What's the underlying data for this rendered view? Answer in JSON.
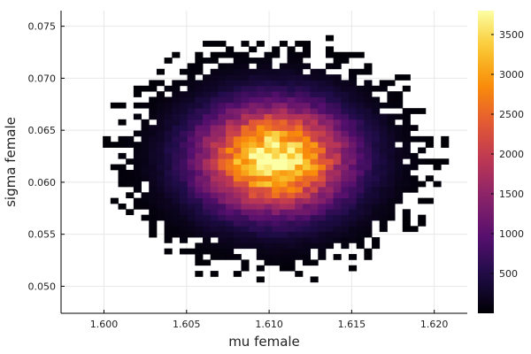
{
  "chart_data": {
    "type": "heatmap",
    "xlabel": "mu female",
    "ylabel": "sigma female",
    "xlim": [
      1.5974,
      1.622
    ],
    "ylim": [
      0.0474,
      0.0765
    ],
    "x_ticks": [
      1.6,
      1.605,
      1.61,
      1.615,
      1.62
    ],
    "x_tick_labels": [
      "1.600",
      "1.605",
      "1.610",
      "1.615",
      "1.620"
    ],
    "y_ticks": [
      0.05,
      0.055,
      0.06,
      0.065,
      0.07,
      0.075
    ],
    "y_tick_labels": [
      "0.050",
      "0.055",
      "0.060",
      "0.065",
      "0.070",
      "0.075"
    ],
    "colorbar": {
      "min": 0,
      "max": 3800,
      "ticks": [
        500,
        1000,
        1500,
        2000,
        2500,
        3000,
        3500
      ],
      "tick_labels": [
        "500",
        "1000",
        "1500",
        "2000",
        "2500",
        "3000",
        "3500"
      ],
      "colormap": "inferno"
    },
    "density": {
      "peak_x": 1.6103,
      "peak_y": 0.0623,
      "peak_count": 3800,
      "spread_x": 0.0031,
      "spread_y": 0.0035,
      "bins_x": 52,
      "bins_y": 53
    },
    "grid": true
  }
}
